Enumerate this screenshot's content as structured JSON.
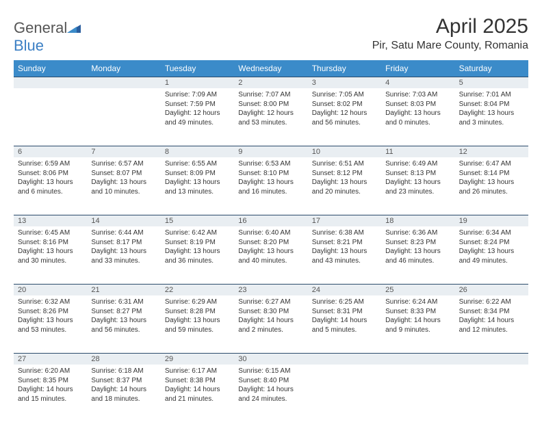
{
  "brand": {
    "part1": "General",
    "part2": "Blue"
  },
  "title": "April 2025",
  "location": "Pir, Satu Mare County, Romania",
  "colors": {
    "header_bg": "#3b8bc9",
    "header_text": "#ffffff",
    "daynum_bg": "#e9eef2",
    "daynum_border": "#2a4a6a",
    "body_text": "#333333",
    "logo_gray": "#555555",
    "logo_blue": "#3b7fc4"
  },
  "weekdays": [
    "Sunday",
    "Monday",
    "Tuesday",
    "Wednesday",
    "Thursday",
    "Friday",
    "Saturday"
  ],
  "weeks": [
    {
      "nums": [
        "",
        "",
        "1",
        "2",
        "3",
        "4",
        "5"
      ],
      "cells": [
        null,
        null,
        {
          "sunrise": "Sunrise: 7:09 AM",
          "sunset": "Sunset: 7:59 PM",
          "daylight1": "Daylight: 12 hours",
          "daylight2": "and 49 minutes."
        },
        {
          "sunrise": "Sunrise: 7:07 AM",
          "sunset": "Sunset: 8:00 PM",
          "daylight1": "Daylight: 12 hours",
          "daylight2": "and 53 minutes."
        },
        {
          "sunrise": "Sunrise: 7:05 AM",
          "sunset": "Sunset: 8:02 PM",
          "daylight1": "Daylight: 12 hours",
          "daylight2": "and 56 minutes."
        },
        {
          "sunrise": "Sunrise: 7:03 AM",
          "sunset": "Sunset: 8:03 PM",
          "daylight1": "Daylight: 13 hours",
          "daylight2": "and 0 minutes."
        },
        {
          "sunrise": "Sunrise: 7:01 AM",
          "sunset": "Sunset: 8:04 PM",
          "daylight1": "Daylight: 13 hours",
          "daylight2": "and 3 minutes."
        }
      ]
    },
    {
      "nums": [
        "6",
        "7",
        "8",
        "9",
        "10",
        "11",
        "12"
      ],
      "cells": [
        {
          "sunrise": "Sunrise: 6:59 AM",
          "sunset": "Sunset: 8:06 PM",
          "daylight1": "Daylight: 13 hours",
          "daylight2": "and 6 minutes."
        },
        {
          "sunrise": "Sunrise: 6:57 AM",
          "sunset": "Sunset: 8:07 PM",
          "daylight1": "Daylight: 13 hours",
          "daylight2": "and 10 minutes."
        },
        {
          "sunrise": "Sunrise: 6:55 AM",
          "sunset": "Sunset: 8:09 PM",
          "daylight1": "Daylight: 13 hours",
          "daylight2": "and 13 minutes."
        },
        {
          "sunrise": "Sunrise: 6:53 AM",
          "sunset": "Sunset: 8:10 PM",
          "daylight1": "Daylight: 13 hours",
          "daylight2": "and 16 minutes."
        },
        {
          "sunrise": "Sunrise: 6:51 AM",
          "sunset": "Sunset: 8:12 PM",
          "daylight1": "Daylight: 13 hours",
          "daylight2": "and 20 minutes."
        },
        {
          "sunrise": "Sunrise: 6:49 AM",
          "sunset": "Sunset: 8:13 PM",
          "daylight1": "Daylight: 13 hours",
          "daylight2": "and 23 minutes."
        },
        {
          "sunrise": "Sunrise: 6:47 AM",
          "sunset": "Sunset: 8:14 PM",
          "daylight1": "Daylight: 13 hours",
          "daylight2": "and 26 minutes."
        }
      ]
    },
    {
      "nums": [
        "13",
        "14",
        "15",
        "16",
        "17",
        "18",
        "19"
      ],
      "cells": [
        {
          "sunrise": "Sunrise: 6:45 AM",
          "sunset": "Sunset: 8:16 PM",
          "daylight1": "Daylight: 13 hours",
          "daylight2": "and 30 minutes."
        },
        {
          "sunrise": "Sunrise: 6:44 AM",
          "sunset": "Sunset: 8:17 PM",
          "daylight1": "Daylight: 13 hours",
          "daylight2": "and 33 minutes."
        },
        {
          "sunrise": "Sunrise: 6:42 AM",
          "sunset": "Sunset: 8:19 PM",
          "daylight1": "Daylight: 13 hours",
          "daylight2": "and 36 minutes."
        },
        {
          "sunrise": "Sunrise: 6:40 AM",
          "sunset": "Sunset: 8:20 PM",
          "daylight1": "Daylight: 13 hours",
          "daylight2": "and 40 minutes."
        },
        {
          "sunrise": "Sunrise: 6:38 AM",
          "sunset": "Sunset: 8:21 PM",
          "daylight1": "Daylight: 13 hours",
          "daylight2": "and 43 minutes."
        },
        {
          "sunrise": "Sunrise: 6:36 AM",
          "sunset": "Sunset: 8:23 PM",
          "daylight1": "Daylight: 13 hours",
          "daylight2": "and 46 minutes."
        },
        {
          "sunrise": "Sunrise: 6:34 AM",
          "sunset": "Sunset: 8:24 PM",
          "daylight1": "Daylight: 13 hours",
          "daylight2": "and 49 minutes."
        }
      ]
    },
    {
      "nums": [
        "20",
        "21",
        "22",
        "23",
        "24",
        "25",
        "26"
      ],
      "cells": [
        {
          "sunrise": "Sunrise: 6:32 AM",
          "sunset": "Sunset: 8:26 PM",
          "daylight1": "Daylight: 13 hours",
          "daylight2": "and 53 minutes."
        },
        {
          "sunrise": "Sunrise: 6:31 AM",
          "sunset": "Sunset: 8:27 PM",
          "daylight1": "Daylight: 13 hours",
          "daylight2": "and 56 minutes."
        },
        {
          "sunrise": "Sunrise: 6:29 AM",
          "sunset": "Sunset: 8:28 PM",
          "daylight1": "Daylight: 13 hours",
          "daylight2": "and 59 minutes."
        },
        {
          "sunrise": "Sunrise: 6:27 AM",
          "sunset": "Sunset: 8:30 PM",
          "daylight1": "Daylight: 14 hours",
          "daylight2": "and 2 minutes."
        },
        {
          "sunrise": "Sunrise: 6:25 AM",
          "sunset": "Sunset: 8:31 PM",
          "daylight1": "Daylight: 14 hours",
          "daylight2": "and 5 minutes."
        },
        {
          "sunrise": "Sunrise: 6:24 AM",
          "sunset": "Sunset: 8:33 PM",
          "daylight1": "Daylight: 14 hours",
          "daylight2": "and 9 minutes."
        },
        {
          "sunrise": "Sunrise: 6:22 AM",
          "sunset": "Sunset: 8:34 PM",
          "daylight1": "Daylight: 14 hours",
          "daylight2": "and 12 minutes."
        }
      ]
    },
    {
      "nums": [
        "27",
        "28",
        "29",
        "30",
        "",
        "",
        ""
      ],
      "cells": [
        {
          "sunrise": "Sunrise: 6:20 AM",
          "sunset": "Sunset: 8:35 PM",
          "daylight1": "Daylight: 14 hours",
          "daylight2": "and 15 minutes."
        },
        {
          "sunrise": "Sunrise: 6:18 AM",
          "sunset": "Sunset: 8:37 PM",
          "daylight1": "Daylight: 14 hours",
          "daylight2": "and 18 minutes."
        },
        {
          "sunrise": "Sunrise: 6:17 AM",
          "sunset": "Sunset: 8:38 PM",
          "daylight1": "Daylight: 14 hours",
          "daylight2": "and 21 minutes."
        },
        {
          "sunrise": "Sunrise: 6:15 AM",
          "sunset": "Sunset: 8:40 PM",
          "daylight1": "Daylight: 14 hours",
          "daylight2": "and 24 minutes."
        },
        null,
        null,
        null
      ]
    }
  ]
}
